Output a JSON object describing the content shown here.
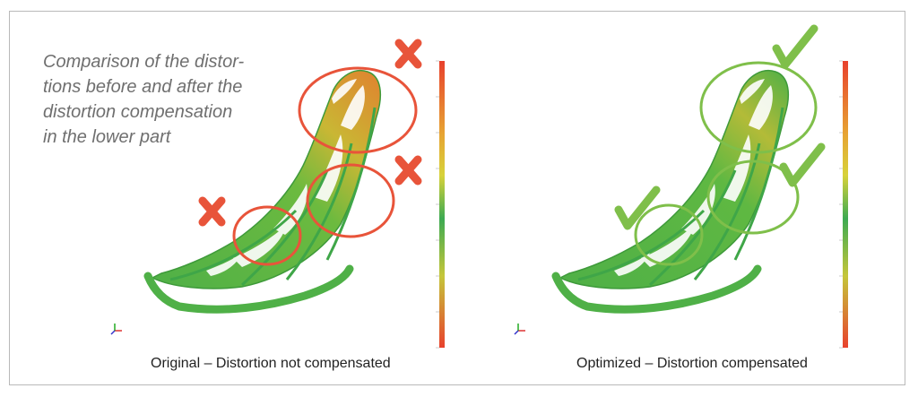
{
  "intro_text": "Comparison of the distortions before and after the distortion compensation in the lower part",
  "intro_lines": [
    "Comparison of the distor-",
    "tions before and after the",
    "distortion compensation",
    "in the lower part"
  ],
  "panels": [
    {
      "caption": "Original – Distortion not compensated",
      "markers": [
        "cross",
        "cross",
        "cross"
      ]
    },
    {
      "caption": "Optimized – Distortion compensated",
      "markers": [
        "check",
        "check",
        "check"
      ]
    }
  ],
  "colors": {
    "frame": "#b9b9b9",
    "cross": "#e8543a",
    "check": "#7fbf4a",
    "part_green": "#4fb047",
    "part_yellow": "#d6c133",
    "part_orange": "#e0822f"
  }
}
